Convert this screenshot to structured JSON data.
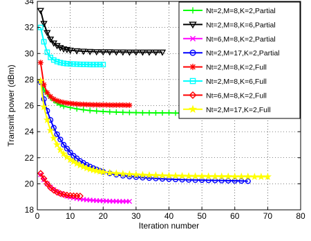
{
  "chart_data": {
    "type": "line",
    "title": "",
    "xlabel": "Iteration number",
    "ylabel": "Transmit power (dBm)",
    "xlim": [
      0,
      80
    ],
    "ylim": [
      18,
      34
    ],
    "xticks": [
      "0",
      "10",
      "20",
      "30",
      "40",
      "50",
      "60",
      "70",
      "80"
    ],
    "yticks": [
      "18",
      "20",
      "22",
      "24",
      "26",
      "28",
      "30",
      "32",
      "34"
    ],
    "grid": true,
    "legend_position": "top-right",
    "series": [
      {
        "name": "Nt=2,M=8,K=2,Partial",
        "color": "#00ff00",
        "marker": "plus",
        "x": [
          1,
          2,
          3,
          4,
          5,
          6,
          7,
          8,
          10,
          12,
          14,
          16,
          18,
          20,
          22,
          24,
          26,
          28,
          30,
          32,
          34,
          36,
          38,
          40,
          42,
          44,
          46,
          48
        ],
        "y": [
          27.8,
          27.2,
          26.9,
          26.6,
          26.4,
          26.2,
          26.05,
          25.95,
          25.85,
          25.75,
          25.68,
          25.62,
          25.58,
          25.55,
          25.52,
          25.5,
          25.48,
          25.47,
          25.46,
          25.45,
          25.45,
          25.44,
          25.44,
          25.44,
          25.43,
          25.43,
          25.43,
          25.43
        ]
      },
      {
        "name": "Nt=2,M=8,K=6,Partial",
        "color": "#000000",
        "marker": "triangle-down",
        "x": [
          1,
          2,
          3,
          4,
          5,
          6,
          7,
          8,
          9,
          10,
          12,
          14,
          16,
          18,
          20,
          22,
          24,
          26,
          28,
          30,
          32,
          34,
          36,
          38
        ],
        "y": [
          33.3,
          32.3,
          31.6,
          31.1,
          30.8,
          30.6,
          30.45,
          30.35,
          30.3,
          30.25,
          30.2,
          30.17,
          30.15,
          30.13,
          30.12,
          30.12,
          30.11,
          30.11,
          30.1,
          30.1,
          30.1,
          30.1,
          30.1,
          30.1
        ]
      },
      {
        "name": "Nt=6,M=8,K=2,Partial",
        "color": "#ff00ff",
        "marker": "x",
        "x": [
          1,
          2,
          3,
          4,
          5,
          6,
          7,
          8,
          9,
          10,
          11,
          12,
          13,
          14,
          15,
          16,
          17,
          18,
          19,
          20,
          21,
          22,
          23,
          24,
          25,
          26,
          27,
          28
        ],
        "y": [
          20.7,
          20.3,
          20.0,
          19.75,
          19.55,
          19.4,
          19.25,
          19.15,
          19.05,
          18.98,
          18.92,
          18.87,
          18.83,
          18.8,
          18.77,
          18.75,
          18.73,
          18.71,
          18.7,
          18.69,
          18.68,
          18.67,
          18.66,
          18.66,
          18.65,
          18.65,
          18.65,
          18.65
        ]
      },
      {
        "name": "Nt=2,M=17,K=2,Partial",
        "color": "#0000ff",
        "marker": "circle",
        "x": [
          1,
          2,
          3,
          4,
          5,
          6,
          7,
          8,
          9,
          10,
          11,
          12,
          13,
          14,
          15,
          16,
          17,
          18,
          19,
          20,
          22,
          24,
          26,
          28,
          30,
          32,
          34,
          36,
          38,
          40,
          42,
          44,
          46,
          48,
          50,
          52,
          54,
          56,
          58,
          60,
          62,
          64
        ],
        "y": [
          27.8,
          26.5,
          25.6,
          24.9,
          24.3,
          23.8,
          23.4,
          23.0,
          22.7,
          22.4,
          22.15,
          21.95,
          21.75,
          21.6,
          21.45,
          21.32,
          21.2,
          21.1,
          21.0,
          20.92,
          20.8,
          20.7,
          20.62,
          20.56,
          20.51,
          20.47,
          20.44,
          20.41,
          20.38,
          20.36,
          20.34,
          20.32,
          20.3,
          20.29,
          20.28,
          20.27,
          20.26,
          20.25,
          20.24,
          20.23,
          20.22,
          20.2
        ]
      },
      {
        "name": "Nt=2,M=8,K=2,Full",
        "color": "#ff0000",
        "marker": "asterisk",
        "x": [
          1,
          2,
          3,
          4,
          5,
          6,
          7,
          8,
          9,
          10,
          11,
          12,
          13,
          14,
          15,
          16,
          17,
          18,
          19,
          20,
          21,
          22,
          23,
          24,
          25,
          26,
          27,
          28
        ],
        "y": [
          29.3,
          27.6,
          27.0,
          26.7,
          26.5,
          26.38,
          26.3,
          26.24,
          26.2,
          26.17,
          26.14,
          26.12,
          26.1,
          26.09,
          26.08,
          26.07,
          26.06,
          26.06,
          26.05,
          26.05,
          26.05,
          26.04,
          26.04,
          26.04,
          26.04,
          26.04,
          26.03,
          26.03
        ]
      },
      {
        "name": "Nt=2,M=8,K=6,Full",
        "color": "#00ffff",
        "marker": "square",
        "x": [
          1,
          2,
          3,
          4,
          5,
          6,
          7,
          8,
          9,
          10,
          11,
          12,
          13,
          14,
          15,
          16,
          17,
          18,
          19,
          20
        ],
        "y": [
          32.0,
          30.9,
          30.1,
          29.7,
          29.5,
          29.38,
          29.3,
          29.25,
          29.22,
          29.2,
          29.19,
          29.18,
          29.17,
          29.16,
          29.16,
          29.15,
          29.15,
          29.15,
          29.15,
          29.15
        ]
      },
      {
        "name": "Nt=6,M=8,K=2,Full",
        "color": "#ff0000",
        "marker": "diamond",
        "x": [
          1,
          2,
          3,
          4,
          5,
          6,
          7,
          8,
          9,
          10,
          11,
          12,
          13
        ],
        "y": [
          20.8,
          20.4,
          20.0,
          19.7,
          19.5,
          19.35,
          19.25,
          19.18,
          19.13,
          19.1,
          19.08,
          19.07,
          19.06
        ]
      },
      {
        "name": "Nt=2,M=17,K=2,Full",
        "color": "#ffff00",
        "marker": "star",
        "x": [
          1,
          2,
          3,
          4,
          5,
          6,
          7,
          8,
          9,
          10,
          11,
          12,
          13,
          14,
          15,
          16,
          17,
          18,
          19,
          20,
          22,
          24,
          26,
          28,
          30,
          32,
          34,
          36,
          38,
          40,
          42,
          44,
          46,
          48,
          50,
          52,
          54,
          56,
          58,
          60,
          62,
          64,
          66,
          68,
          70
        ],
        "y": [
          27.9,
          25.9,
          24.9,
          24.1,
          23.5,
          23.0,
          22.6,
          22.3,
          22.05,
          21.85,
          21.7,
          21.55,
          21.42,
          21.3,
          21.2,
          21.12,
          21.05,
          21.0,
          20.95,
          20.9,
          20.84,
          20.8,
          20.76,
          20.73,
          20.7,
          20.68,
          20.66,
          20.65,
          20.63,
          20.62,
          20.61,
          20.6,
          20.59,
          20.58,
          20.58,
          20.57,
          20.57,
          20.56,
          20.56,
          20.55,
          20.55,
          20.55,
          20.54,
          20.54,
          20.54
        ]
      }
    ]
  }
}
